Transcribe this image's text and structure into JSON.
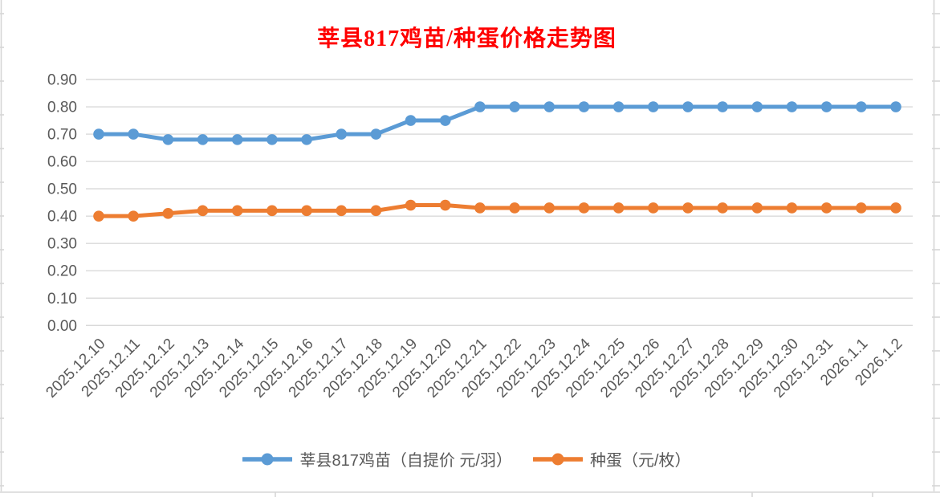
{
  "chart_data": {
    "type": "line",
    "title": "莘县817鸡苗/种蛋价格走势图",
    "title_color": "#FF0000",
    "xlabel": "",
    "ylabel": "",
    "categories": [
      "2025.12.10",
      "2025.12.11",
      "2025.12.12",
      "2025.12.13",
      "2025.12.14",
      "2025.12.15",
      "2025.12.16",
      "2025.12.17",
      "2025.12.18",
      "2025.12.19",
      "2025.12.20",
      "2025.12.21",
      "2025.12.22",
      "2025.12.23",
      "2025.12.24",
      "2025.12.25",
      "2025.12.26",
      "2025.12.27",
      "2025.12.28",
      "2025.12.29",
      "2025.12.30",
      "2025.12.31",
      "2026.1.1",
      "2026.1.2"
    ],
    "series": [
      {
        "name": "莘县817鸡苗（自提价 元/羽）",
        "color": "#5B9BD5",
        "values": [
          0.7,
          0.7,
          0.68,
          0.68,
          0.68,
          0.68,
          0.68,
          0.7,
          0.7,
          0.75,
          0.75,
          0.8,
          0.8,
          0.8,
          0.8,
          0.8,
          0.8,
          0.8,
          0.8,
          0.8,
          0.8,
          0.8,
          0.8,
          0.8
        ]
      },
      {
        "name": "种蛋（元/枚）",
        "color": "#ED7D31",
        "values": [
          0.4,
          0.4,
          0.41,
          0.42,
          0.42,
          0.42,
          0.42,
          0.42,
          0.42,
          0.44,
          0.44,
          0.43,
          0.43,
          0.43,
          0.43,
          0.43,
          0.43,
          0.43,
          0.43,
          0.43,
          0.43,
          0.43,
          0.43,
          0.43
        ]
      }
    ],
    "ylim": [
      0.0,
      0.9
    ],
    "ytick_labels": [
      "0.00",
      "0.10",
      "0.20",
      "0.30",
      "0.40",
      "0.50",
      "0.60",
      "0.70",
      "0.80",
      "0.90"
    ],
    "grid": true,
    "gridline_color": "#D9D9D9",
    "axis_label_color": "#595959",
    "cell_line_color": "#D6D6D6",
    "legend_position": "bottom"
  }
}
